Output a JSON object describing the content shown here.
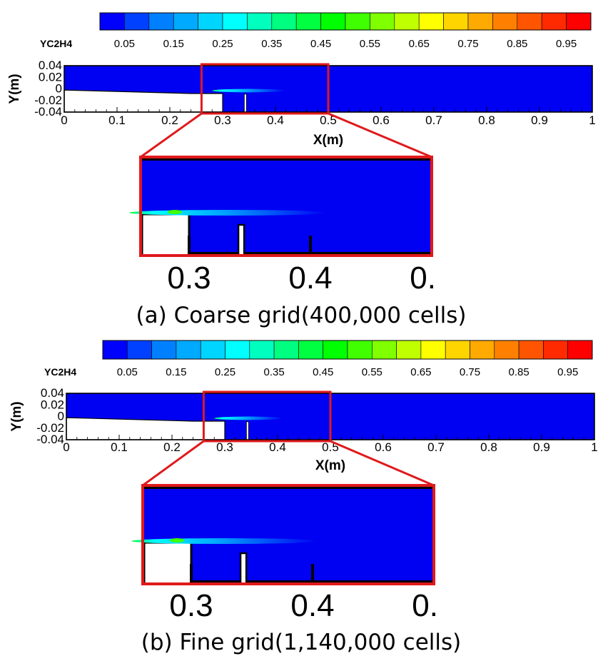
{
  "colors": {
    "field_background": "#0000f2",
    "frame": "#000000",
    "solid_fill": "#ffffff",
    "zoom_box": "#e0191b",
    "colormap": [
      "#0000ff",
      "#0040ff",
      "#0080ff",
      "#00aaff",
      "#00d5ff",
      "#00ffff",
      "#00ffbf",
      "#00ff80",
      "#00ff40",
      "#00ff00",
      "#40ff00",
      "#80ff00",
      "#bfff00",
      "#ffff00",
      "#ffd500",
      "#ffaa00",
      "#ff8000",
      "#ff5500",
      "#ff2a00",
      "#ff0000"
    ]
  },
  "chart_data": [
    {
      "type": "heatmap",
      "variable": "YC2H4",
      "colorbar": {
        "range": [
          0,
          1
        ],
        "levels": 20,
        "tick_values": [
          0.05,
          0.15,
          0.25,
          0.35,
          0.45,
          0.55,
          0.65,
          0.75,
          0.85,
          0.95
        ],
        "tick_labels": [
          "0.05",
          "0.15",
          "0.25",
          "0.35",
          "0.45",
          "0.55",
          "0.65",
          "0.75",
          "0.85",
          "0.95"
        ]
      },
      "xlabel": "X(m)",
      "ylabel": "Y(m)",
      "xlim": [
        0,
        1
      ],
      "ylim": [
        -0.04,
        0.04
      ],
      "x_ticks": [
        "0",
        "0.1",
        "0.2",
        "0.3",
        "0.4",
        "0.5",
        "0.6",
        "0.7",
        "0.8",
        "0.9",
        "1"
      ],
      "y_ticks": [
        "0.04",
        "0.02",
        "0",
        "-0.02",
        "-0.04"
      ],
      "zoom_region": {
        "xlim": [
          0.26,
          0.5
        ]
      },
      "zoom_ticks": [
        "0.3",
        "0.4",
        "0."
      ],
      "plume": {
        "x_start": 0.28,
        "x_end": 0.42,
        "y": -0.003,
        "peak_value": 0.4
      },
      "caption": "(a) Coarse grid(400,000 cells)"
    },
    {
      "type": "heatmap",
      "variable": "YC2H4",
      "colorbar": {
        "range": [
          0,
          1
        ],
        "levels": 20,
        "tick_values": [
          0.05,
          0.15,
          0.25,
          0.35,
          0.45,
          0.55,
          0.65,
          0.75,
          0.85,
          0.95
        ],
        "tick_labels": [
          "0.05",
          "0.15",
          "0.25",
          "0.35",
          "0.45",
          "0.55",
          "0.65",
          "0.75",
          "0.85",
          "0.95"
        ]
      },
      "xlabel": "X(m)",
      "ylabel": "Y(m)",
      "xlim": [
        0,
        1
      ],
      "ylim": [
        -0.04,
        0.04
      ],
      "x_ticks": [
        "0",
        "0.1",
        "0.2",
        "0.3",
        "0.4",
        "0.5",
        "0.6",
        "0.7",
        "0.8",
        "0.9",
        "1"
      ],
      "y_ticks": [
        "0.04",
        "0.02",
        "0",
        "-0.02",
        "-0.04"
      ],
      "zoom_region": {
        "xlim": [
          0.26,
          0.5
        ]
      },
      "zoom_ticks": [
        "0.3",
        "0.4",
        "0."
      ],
      "plume": {
        "x_start": 0.28,
        "x_end": 0.41,
        "y": -0.003,
        "peak_value": 0.45
      },
      "caption": "(b) Fine grid(1,140,000 cells)"
    }
  ]
}
